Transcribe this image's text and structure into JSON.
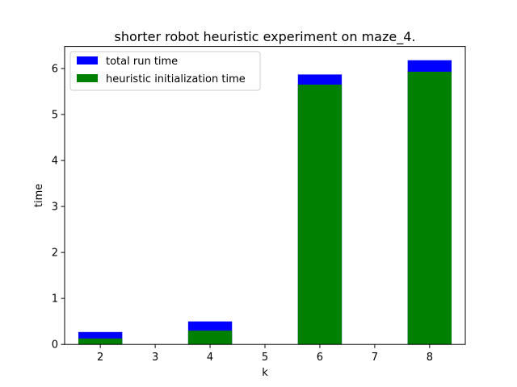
{
  "chart_data": {
    "type": "bar",
    "title": "shorter robot heuristic experiment on maze_4.",
    "xlabel": "k",
    "ylabel": "time",
    "x": [
      2,
      4,
      6,
      8
    ],
    "xticks": [
      "2",
      "3",
      "4",
      "5",
      "6",
      "7",
      "8"
    ],
    "yticks": [
      "0",
      "1",
      "2",
      "3",
      "4",
      "5",
      "6"
    ],
    "xlim": [
      1.35,
      8.65
    ],
    "ylim": [
      0,
      6.48
    ],
    "bar_width": 0.8,
    "grid": false,
    "legend_position": "top-left",
    "series": [
      {
        "name": "total run time",
        "color": "#0000ff",
        "values": [
          0.27,
          0.5,
          5.87,
          6.18
        ]
      },
      {
        "name": "heuristic initialization time",
        "color": "#008000",
        "values": [
          0.13,
          0.3,
          5.65,
          5.93
        ]
      }
    ]
  }
}
